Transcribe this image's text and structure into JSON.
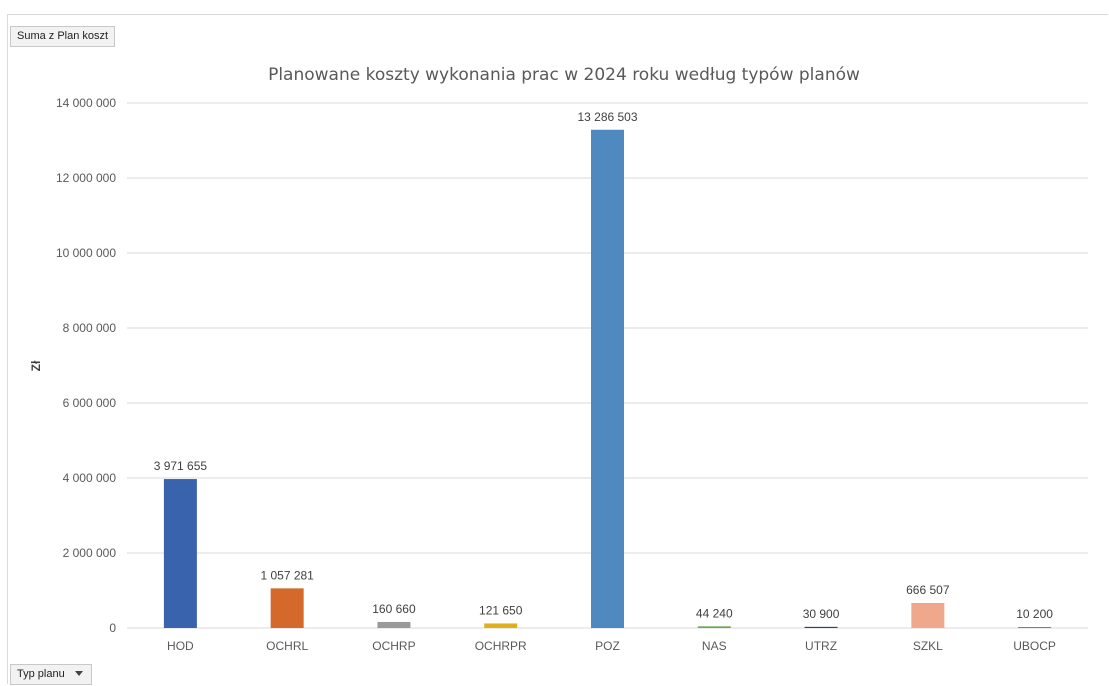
{
  "pivot": {
    "values_field": "Suma z Plan koszt",
    "axis_field": "Typ planu"
  },
  "chart_data": {
    "type": "bar",
    "title": "Planowane koszty wykonania prac w 2024 roku według typów planów",
    "xlabel": "",
    "ylabel": "Zł",
    "ylim": [
      0,
      14000000
    ],
    "yticks": [
      0,
      2000000,
      4000000,
      6000000,
      8000000,
      10000000,
      12000000,
      14000000
    ],
    "ytick_labels": [
      "0",
      "2 000 000",
      "4 000 000",
      "6 000 000",
      "8 000 000",
      "10 000 000",
      "12 000 000",
      "14 000 000"
    ],
    "grid": true,
    "categories": [
      "HOD",
      "OCHRL",
      "OCHRP",
      "OCHRPR",
      "POZ",
      "NAS",
      "UTRZ",
      "SZKL",
      "UBOCP"
    ],
    "values": [
      3971655,
      1057281,
      160660,
      121650,
      13286503,
      44240,
      30900,
      666507,
      10200
    ],
    "data_labels": [
      "3 971 655",
      "1 057 281",
      "160 660",
      "121 650",
      "13 286 503",
      "44 240",
      "30 900",
      "666 507",
      "10 200"
    ],
    "colors": [
      "#3a63ae",
      "#d5692b",
      "#9a9a9a",
      "#e0b01b",
      "#4f89c0",
      "#6aa84f",
      "#264478",
      "#f0a88c",
      "#7f7f7f"
    ]
  }
}
